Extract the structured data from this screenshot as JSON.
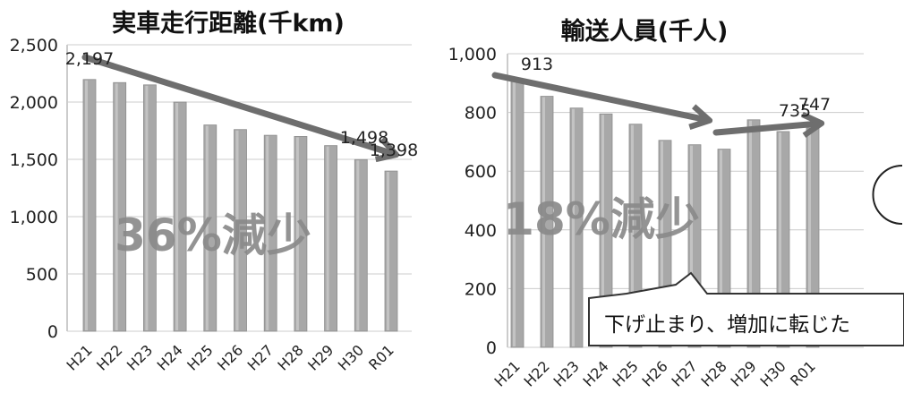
{
  "chart_data": [
    {
      "type": "bar",
      "title": "実車走行距離(千km)",
      "categories": [
        "H21",
        "H22",
        "H23",
        "H24",
        "H25",
        "H26",
        "H27",
        "H28",
        "H29",
        "H30",
        "R01"
      ],
      "values": [
        2197,
        2170,
        2150,
        2000,
        1800,
        1760,
        1710,
        1700,
        1620,
        1498,
        1398
      ],
      "ylim": [
        0,
        2500
      ],
      "yticks": [
        0,
        500,
        1000,
        1500,
        2000,
        2500
      ],
      "ytick_labels": [
        "0",
        "500",
        "1,000",
        "1,500",
        "2,000",
        "2,500"
      ],
      "data_labels": [
        {
          "category": "H21",
          "text": "2,197"
        },
        {
          "category": "H30",
          "text": "1,498"
        },
        {
          "category": "R01",
          "text": "1,398"
        }
      ],
      "annotation": "36%減少",
      "grid": true,
      "bar_color": "#a8a8a8"
    },
    {
      "type": "bar",
      "title": "輸送人員(千人)",
      "categories": [
        "H21",
        "H22",
        "H23",
        "H24",
        "H25",
        "H26",
        "H27",
        "H28",
        "H29",
        "H30",
        "R01"
      ],
      "values": [
        913,
        855,
        815,
        795,
        760,
        705,
        690,
        675,
        775,
        735,
        747
      ],
      "ylim": [
        0,
        1000
      ],
      "yticks": [
        0,
        200,
        400,
        600,
        800,
        1000
      ],
      "ytick_labels": [
        "0",
        "200",
        "400",
        "600",
        "800",
        "1,000"
      ],
      "data_labels": [
        {
          "category": "H21",
          "text": "913"
        },
        {
          "category": "H30",
          "text": "735"
        },
        {
          "category": "R01",
          "text": "747"
        }
      ],
      "annotation": "18%減少",
      "callout": "下げ止まり、増加に転じた",
      "grid": true,
      "bar_color": "#a8a8a8"
    }
  ],
  "colors": {
    "bar": "#a8a8a8",
    "bar_highlight": "#cfcfcf",
    "arrow": "#6e6e6e",
    "annotation": "#8a8a8a",
    "grid": "#cccccc",
    "text": "#222222"
  }
}
